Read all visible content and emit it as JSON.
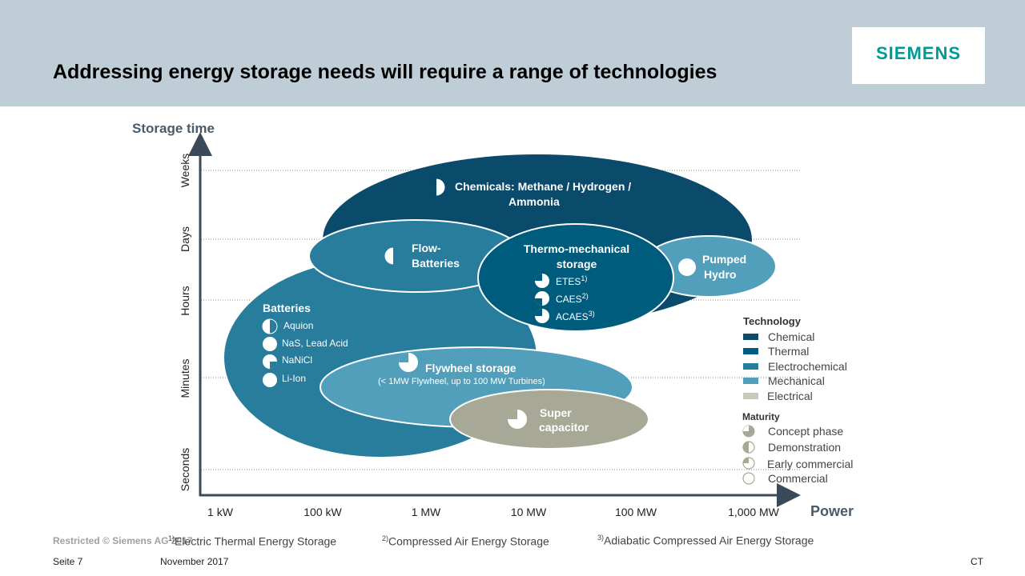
{
  "slide": {
    "title": "Addressing energy storage needs will require a range of technologies",
    "logo_text": "SIEMENS"
  },
  "axes": {
    "y_title": "Storage time",
    "x_title": "Power",
    "y_ticks": [
      "Weeks",
      "Days",
      "Hours",
      "Minutes",
      "Seconds"
    ],
    "x_ticks": [
      "1 kW",
      "100 kW",
      "1 MW",
      "10 MW",
      "100 MW",
      "1,000 MW"
    ]
  },
  "colors": {
    "chemical": "#0a4a6a",
    "thermal": "#005c7c",
    "electrochemical": "#287c9c",
    "mechanical": "#529fbb",
    "electrical": "#a8a896",
    "maturity_icon": "#a8a896",
    "axis": "#3a4a58",
    "header": "#bfcdd7",
    "brand": "#009999"
  },
  "technologies": {
    "chemicals": {
      "label_line1": "Chemicals: Methane / Hydrogen /",
      "label_line2": "Ammonia",
      "maturity": "demonstration"
    },
    "flow_batteries": {
      "label_line1": "Flow-",
      "label_line2": "Batteries",
      "maturity": "demonstration"
    },
    "thermo_mechanical": {
      "label_line1": "Thermo-mechanical",
      "label_line2": "storage",
      "items": [
        {
          "name": "ETES",
          "note": "1)",
          "maturity": "concept"
        },
        {
          "name": "CAES",
          "note": "2)",
          "maturity": "early-commercial"
        },
        {
          "name": "ACAES",
          "note": "3)",
          "maturity": "concept"
        }
      ]
    },
    "pumped_hydro": {
      "label_line1": "Pumped",
      "label_line2": "Hydro",
      "maturity": "commercial"
    },
    "batteries": {
      "label": "Batteries",
      "items": [
        {
          "name": "Aquion",
          "maturity": "demonstration"
        },
        {
          "name": "NaS, Lead Acid",
          "maturity": "commercial"
        },
        {
          "name": "NaNiCl",
          "maturity": "early-commercial"
        },
        {
          "name": "Li-Ion",
          "maturity": "commercial"
        }
      ]
    },
    "flywheel": {
      "label": "Flywheel storage",
      "sublabel": "(< 1MW Flywheel, up to 100 MW Turbines)",
      "maturity": "concept"
    },
    "supercap": {
      "label_line1": "Super",
      "label_line2": "capacitor",
      "maturity": "concept"
    }
  },
  "legend": {
    "technology_title": "Technology",
    "technology_items": [
      "Chemical",
      "Thermal",
      "Electrochemical",
      "Mechanical",
      "Electrical"
    ],
    "maturity_title": "Maturity",
    "maturity_items": [
      "Concept phase",
      "Demonstration",
      "Early commercial",
      "Commercial"
    ]
  },
  "footnotes": {
    "restricted": "Restricted © Siemens AG 2017",
    "n1_mark": "1)",
    "n1": "Electric Thermal Energy Storage",
    "n2_mark": "2)",
    "n2": "Compressed Air Energy Storage",
    "n3_mark": "3)",
    "n3": "Adiabatic Compressed Air Energy Storage"
  },
  "footer": {
    "page": "Seite 7",
    "date": "November 2017",
    "dept": "CT"
  }
}
